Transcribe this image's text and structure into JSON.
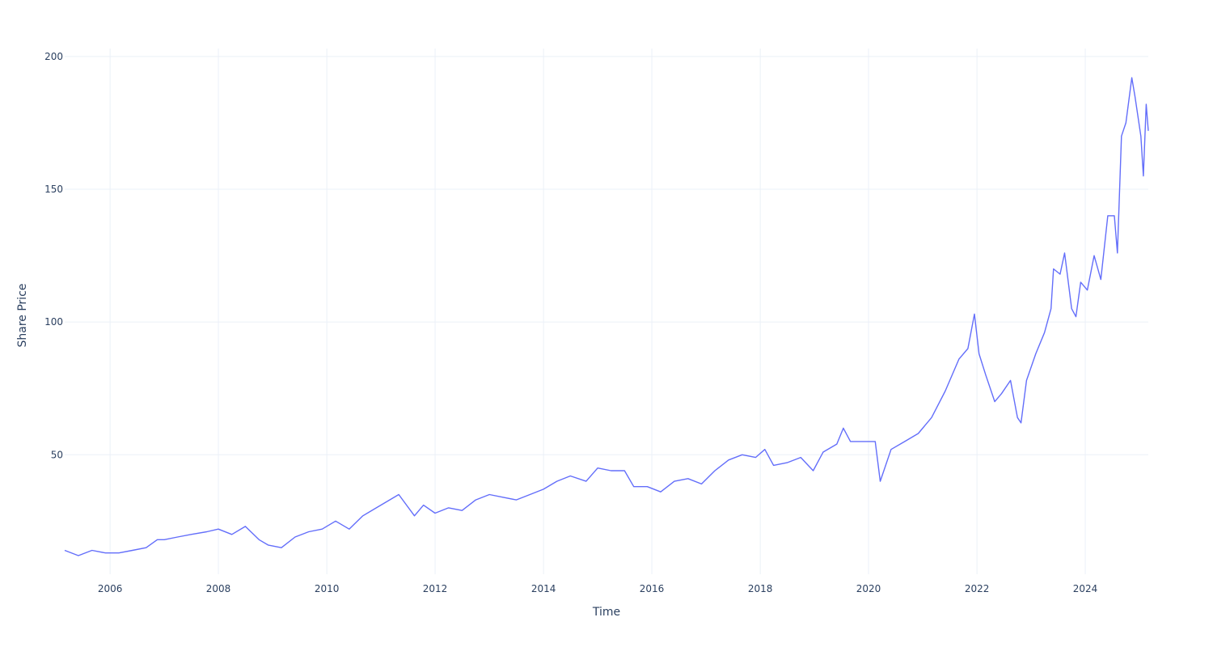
{
  "chart_data": {
    "type": "line",
    "title": "",
    "xlabel": "Time",
    "ylabel": "Share Price",
    "xlim": [
      "2005-03-01",
      "2025-03-01"
    ],
    "ylim": [
      5,
      203
    ],
    "x_ticks": [
      "2006",
      "2008",
      "2010",
      "2012",
      "2014",
      "2016",
      "2018",
      "2020",
      "2022",
      "2024"
    ],
    "y_ticks": [
      50,
      100,
      150,
      200
    ],
    "grid": true,
    "legend": "none",
    "line_color": "#636efa",
    "series": [
      {
        "x": [
          "2005-03-01",
          "2005-06-01",
          "2005-09-01",
          "2005-12-01",
          "2006-03-01",
          "2006-06-01",
          "2006-09-01",
          "2006-11-15",
          "2007-01-01",
          "2007-04-01",
          "2007-07-01",
          "2007-10-15",
          "2008-01-01",
          "2008-04-01",
          "2008-07-01",
          "2008-10-01",
          "2008-12-01",
          "2009-03-01",
          "2009-06-01",
          "2009-09-01",
          "2009-12-01",
          "2010-03-01",
          "2010-06-01",
          "2010-09-01",
          "2010-12-01",
          "2011-03-01",
          "2011-05-01",
          "2011-08-15",
          "2011-10-15",
          "2012-01-01",
          "2012-04-01",
          "2012-07-01",
          "2012-10-01",
          "2013-01-01",
          "2013-04-01",
          "2013-07-01",
          "2013-10-01",
          "2014-01-01",
          "2014-04-01",
          "2014-07-01",
          "2014-10-15",
          "2015-01-01",
          "2015-04-01",
          "2015-07-01",
          "2015-09-01",
          "2015-12-01",
          "2016-03-01",
          "2016-06-01",
          "2016-09-01",
          "2016-12-01",
          "2017-03-01",
          "2017-06-01",
          "2017-09-01",
          "2017-12-01",
          "2018-02-01",
          "2018-04-01",
          "2018-07-01",
          "2018-10-01",
          "2018-12-24",
          "2019-03-01",
          "2019-06-01",
          "2019-07-15",
          "2019-09-01",
          "2019-12-01",
          "2020-02-15",
          "2020-03-20",
          "2020-06-01",
          "2020-09-01",
          "2020-12-01",
          "2021-03-01",
          "2021-06-01",
          "2021-09-01",
          "2021-11-01",
          "2021-12-15",
          "2022-01-15",
          "2022-03-01",
          "2022-05-01",
          "2022-06-15",
          "2022-08-15",
          "2022-10-01",
          "2022-10-25",
          "2022-12-01",
          "2023-02-01",
          "2023-04-01",
          "2023-05-15",
          "2023-06-01",
          "2023-07-15",
          "2023-08-15",
          "2023-10-01",
          "2023-10-30",
          "2023-12-01",
          "2024-01-15",
          "2024-03-01",
          "2024-04-15",
          "2024-06-01",
          "2024-07-15",
          "2024-08-05",
          "2024-09-01",
          "2024-10-01",
          "2024-11-10",
          "2024-12-01",
          "2025-01-10",
          "2025-01-27",
          "2025-02-15",
          "2025-03-01"
        ],
        "y": [
          14,
          12,
          14,
          13,
          13,
          14,
          15,
          18,
          18,
          19,
          20,
          21,
          22,
          20,
          23,
          18,
          16,
          15,
          19,
          21,
          22,
          25,
          22,
          27,
          30,
          33,
          35,
          27,
          31,
          28,
          30,
          29,
          33,
          35,
          34,
          33,
          35,
          37,
          40,
          42,
          40,
          45,
          44,
          44,
          38,
          38,
          36,
          40,
          41,
          39,
          44,
          48,
          50,
          49,
          52,
          46,
          47,
          49,
          44,
          51,
          54,
          60,
          55,
          55,
          55,
          40,
          52,
          55,
          58,
          64,
          74,
          86,
          90,
          103,
          88,
          80,
          70,
          73,
          78,
          64,
          62,
          78,
          88,
          96,
          105,
          120,
          118,
          126,
          105,
          102,
          115,
          112,
          125,
          116,
          140,
          140,
          126,
          170,
          175,
          192,
          185,
          170,
          155,
          182,
          172
        ]
      }
    ]
  }
}
